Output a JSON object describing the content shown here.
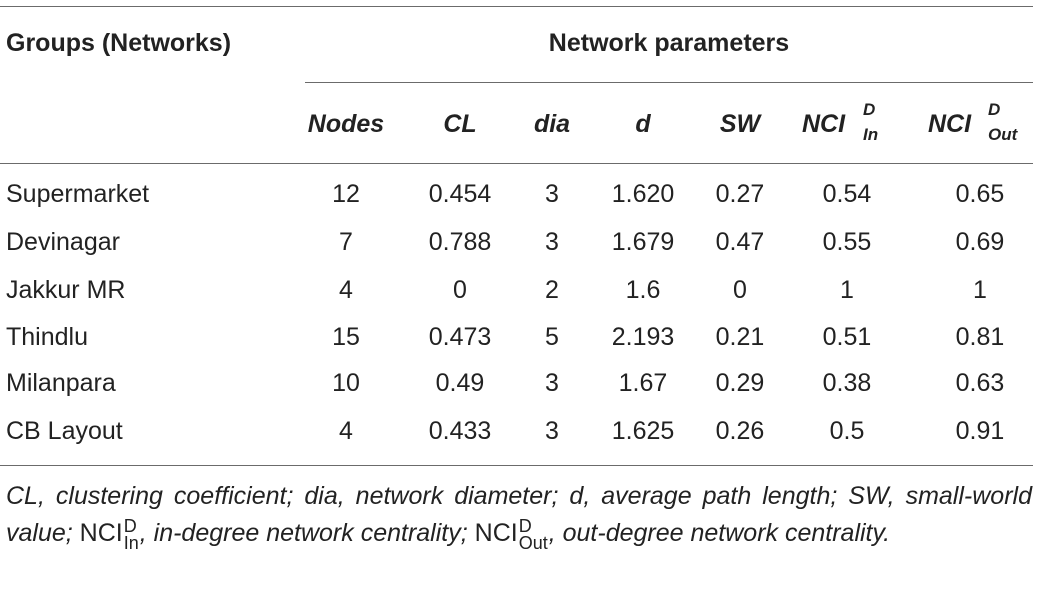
{
  "table": {
    "group_header": "Groups (Networks)",
    "params_header": "Network parameters",
    "columns": {
      "nodes": "Nodes",
      "cl": "CL",
      "dia": "dia",
      "d": "d",
      "sw": "SW",
      "nci_in": {
        "base": "NCI",
        "sup": "D",
        "sub": "In"
      },
      "nci_out": {
        "base": "NCI",
        "sup": "D",
        "sub": "Out"
      }
    },
    "rows": [
      {
        "name": "Supermarket",
        "nodes": "12",
        "cl": "0.454",
        "dia": "3",
        "d": "1.620",
        "sw": "0.27",
        "nci_in": "0.54",
        "nci_out": "0.65"
      },
      {
        "name": "Devinagar",
        "nodes": "7",
        "cl": "0.788",
        "dia": "3",
        "d": "1.679",
        "sw": "0.47",
        "nci_in": "0.55",
        "nci_out": "0.69"
      },
      {
        "name": "Jakkur MR",
        "nodes": "4",
        "cl": "0",
        "dia": "2",
        "d": "1.6",
        "sw": "0",
        "nci_in": "1",
        "nci_out": "1"
      },
      {
        "name": "Thindlu",
        "nodes": "15",
        "cl": "0.473",
        "dia": "5",
        "d": "2.193",
        "sw": "0.21",
        "nci_in": "0.51",
        "nci_out": "0.81"
      },
      {
        "name": "Milanpara",
        "nodes": "10",
        "cl": "0.49",
        "dia": "3",
        "d": "1.67",
        "sw": "0.29",
        "nci_in": "0.38",
        "nci_out": "0.63"
      },
      {
        "name": "CB Layout",
        "nodes": "4",
        "cl": "0.433",
        "dia": "3",
        "d": "1.625",
        "sw": "0.26",
        "nci_in": "0.5",
        "nci_out": "0.91"
      }
    ]
  },
  "footnote": {
    "part1": "CL, clustering coefficient; dia, network diameter; d, average path length; SW, small-world value;",
    "nci_in": {
      "base": "NCI",
      "sup": "D",
      "sub": "In"
    },
    "part2": ", in-degree network centrality;",
    "nci_out": {
      "base": "NCI",
      "sup": "D",
      "sub": "Out"
    },
    "part3": ", out-degree network centrality."
  }
}
